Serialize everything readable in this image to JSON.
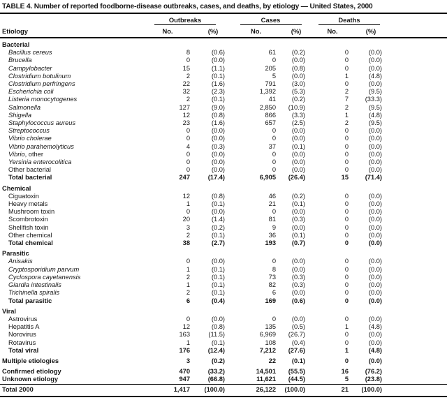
{
  "title": "TABLE 4. Number of reported foodborne-disease outbreaks, cases, and deaths, by etiology — United States, 2000",
  "colors": {
    "ink": "#161616",
    "background": "#ffffff",
    "rule": "#000000"
  },
  "header": {
    "etiology": "Etiology",
    "groups": [
      "Outbreaks",
      "Cases",
      "Deaths"
    ],
    "no": "No.",
    "pct": "(%)"
  },
  "sections": [
    {
      "name": "Bacterial",
      "rows": [
        {
          "em": "Bacillus cereus",
          "cells": [
            "8",
            "(0.6)",
            "61",
            "(0.2)",
            "0",
            "(0.0)"
          ]
        },
        {
          "em": "Brucella",
          "cells": [
            "0",
            "(0.0)",
            "0",
            "(0.0)",
            "0",
            "(0.0)"
          ]
        },
        {
          "em": "Campylobacter",
          "cells": [
            "15",
            "(1.1)",
            "205",
            "(0.8)",
            "0",
            "(0.0)"
          ]
        },
        {
          "em": "Clostridium botulinum",
          "cells": [
            "2",
            "(0.1)",
            "5",
            "(0.0)",
            "1",
            "(4.8)"
          ]
        },
        {
          "em": "Clostridium perfringens",
          "cells": [
            "22",
            "(1.6)",
            "791",
            "(3.0)",
            "0",
            "(0.0)"
          ]
        },
        {
          "em": "Escherichia coli",
          "cells": [
            "32",
            "(2.3)",
            "1,392",
            "(5.3)",
            "2",
            "(9.5)"
          ]
        },
        {
          "em": "Listeria monocytogenes",
          "cells": [
            "2",
            "(0.1)",
            "41",
            "(0.2)",
            "7",
            "(33.3)"
          ]
        },
        {
          "em": "Salmonella",
          "cells": [
            "127",
            "(9.0)",
            "2,850",
            "(10.9)",
            "2",
            "(9.5)"
          ]
        },
        {
          "em": "Shigella",
          "cells": [
            "12",
            "(0.8)",
            "866",
            "(3.3)",
            "1",
            "(4.8)"
          ]
        },
        {
          "em": "Staphylococcus aureus",
          "cells": [
            "23",
            "(1.6)",
            "657",
            "(2.5)",
            "2",
            "(9.5)"
          ]
        },
        {
          "em": "Streptococcus",
          "cells": [
            "0",
            "(0.0)",
            "0",
            "(0.0)",
            "0",
            "(0.0)"
          ]
        },
        {
          "em": "Vibrio cholerae",
          "cells": [
            "0",
            "(0.0)",
            "0",
            "(0.0)",
            "0",
            "(0.0)"
          ]
        },
        {
          "em": "Vibrio parahemolyticus",
          "cells": [
            "4",
            "(0.3)",
            "37",
            "(0.1)",
            "0",
            "(0.0)"
          ]
        },
        {
          "em": "Vibrio",
          "rest": ", other",
          "cells": [
            "0",
            "(0.0)",
            "0",
            "(0.0)",
            "0",
            "(0.0)"
          ]
        },
        {
          "em": "Yersinia enterocolitica",
          "cells": [
            "0",
            "(0.0)",
            "0",
            "(0.0)",
            "0",
            "(0.0)"
          ]
        },
        {
          "label": "Other bacterial",
          "cells": [
            "0",
            "(0.0)",
            "0",
            "(0.0)",
            "0",
            "(0.0)"
          ]
        },
        {
          "label": "Total bacterial",
          "bold": true,
          "cells": [
            "247",
            "(17.4)",
            "6,905",
            "(26.4)",
            "15",
            "(71.4)"
          ]
        }
      ]
    },
    {
      "name": "Chemical",
      "rows": [
        {
          "label": "Ciguatoxin",
          "cells": [
            "12",
            "(0.8)",
            "46",
            "(0.2)",
            "0",
            "(0.0)"
          ]
        },
        {
          "label": "Heavy metals",
          "cells": [
            "1",
            "(0.1)",
            "21",
            "(0.1)",
            "0",
            "(0.0)"
          ]
        },
        {
          "label": "Mushroom toxin",
          "cells": [
            "0",
            "(0.0)",
            "0",
            "(0.0)",
            "0",
            "(0.0)"
          ]
        },
        {
          "label": "Scombrotoxin",
          "cells": [
            "20",
            "(1.4)",
            "81",
            "(0.3)",
            "0",
            "(0.0)"
          ]
        },
        {
          "label": "Shellfish toxin",
          "cells": [
            "3",
            "(0.2)",
            "9",
            "(0.0)",
            "0",
            "(0.0)"
          ]
        },
        {
          "label": "Other chemical",
          "cells": [
            "2",
            "(0.1)",
            "36",
            "(0.1)",
            "0",
            "(0.0)"
          ]
        },
        {
          "label": "Total chemical",
          "bold": true,
          "cells": [
            "38",
            "(2.7)",
            "193",
            "(0.7)",
            "0",
            "(0.0)"
          ]
        }
      ]
    },
    {
      "name": "Parasitic",
      "rows": [
        {
          "em": "Anisakis",
          "cells": [
            "0",
            "(0.0)",
            "0",
            "(0.0)",
            "0",
            "(0.0)"
          ]
        },
        {
          "em": "Cryptosporidium parvum",
          "cells": [
            "1",
            "(0.1)",
            "8",
            "(0.0)",
            "0",
            "(0.0)"
          ]
        },
        {
          "em": "Cyclospora cayetanensis",
          "cells": [
            "2",
            "(0.1)",
            "73",
            "(0.3)",
            "0",
            "(0.0)"
          ]
        },
        {
          "em": "Giardia intestinalis",
          "cells": [
            "1",
            "(0.1)",
            "82",
            "(0.3)",
            "0",
            "(0.0)"
          ]
        },
        {
          "em": "Trichinella spiralis",
          "cells": [
            "2",
            "(0.1)",
            "6",
            "(0.0)",
            "0",
            "(0.0)"
          ]
        },
        {
          "label": "Total parasitic",
          "bold": true,
          "cells": [
            "6",
            "(0.4)",
            "169",
            "(0.6)",
            "0",
            "(0.0)"
          ]
        }
      ]
    },
    {
      "name": "Viral",
      "rows": [
        {
          "label": "Astrovirus",
          "cells": [
            "0",
            "(0.0)",
            "0",
            "(0.0)",
            "0",
            "(0.0)"
          ]
        },
        {
          "label": "Hepatitis A",
          "cells": [
            "12",
            "(0.8)",
            "135",
            "(0.5)",
            "1",
            "(4.8)"
          ]
        },
        {
          "label": "Norovirus",
          "cells": [
            "163",
            "(11.5)",
            "6,969",
            "(26.7)",
            "0",
            "(0.0)"
          ]
        },
        {
          "label": "Rotavirus",
          "cells": [
            "1",
            "(0.1)",
            "108",
            "(0.4)",
            "0",
            "(0.0)"
          ]
        },
        {
          "label": "Total viral",
          "bold": true,
          "cells": [
            "176",
            "(12.4)",
            "7,212",
            "(27.6)",
            "1",
            "(4.8)"
          ]
        }
      ]
    }
  ],
  "footer_rows": [
    {
      "label": "Multiple etiologies",
      "bold": true,
      "flush": true,
      "gap": true,
      "cells": [
        "3",
        "(0.2)",
        "22",
        "(0.1)",
        "0",
        "(0.0)"
      ]
    },
    {
      "label": "Confirmed etiology",
      "bold": true,
      "flush": true,
      "gap": true,
      "cells": [
        "470",
        "(33.2)",
        "14,501",
        "(55.5)",
        "16",
        "(76.2)"
      ]
    },
    {
      "label": "Unknown etiology",
      "bold": true,
      "flush": true,
      "cells": [
        "947",
        "(66.8)",
        "11,621",
        "(44.5)",
        "5",
        "(23.8)"
      ]
    },
    {
      "label": "Total 2000",
      "bold": true,
      "flush": true,
      "total": true,
      "cells": [
        "1,417",
        "(100.0)",
        "26,122",
        "(100.0)",
        "21",
        "(100.0)"
      ]
    }
  ]
}
